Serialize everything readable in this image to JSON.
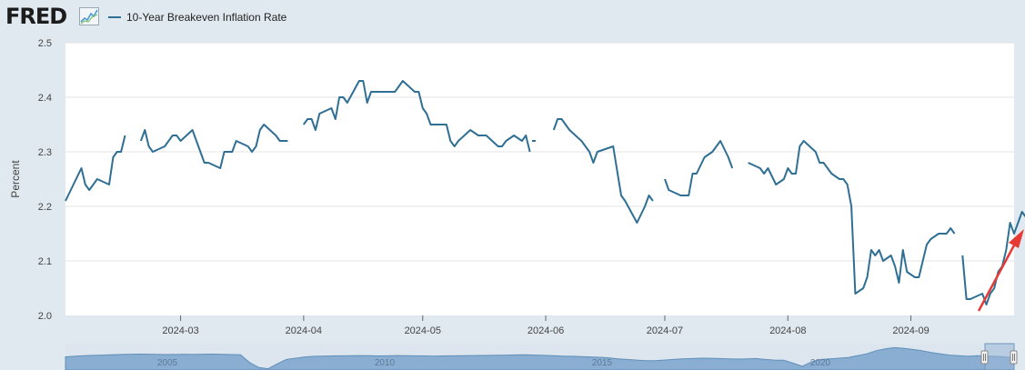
{
  "header": {
    "logo_text": "FRED",
    "logo_icon": "line-chart-icon"
  },
  "colors": {
    "series": "#2f6f94",
    "plot_bg": "#ffffff",
    "page_bg": "#e1e9f0",
    "navigator_fill": "#8aaed1",
    "arrow": "#e83a35"
  },
  "chart_data": {
    "type": "line",
    "ylabel": "Percent",
    "ylim": [
      2.0,
      2.5
    ],
    "yticks": [
      "2.0",
      "2.1",
      "2.2",
      "2.3",
      "2.4",
      "2.5"
    ],
    "xlim": [
      "2024-02-01",
      "2024-09-27"
    ],
    "xticks": [
      {
        "date": "2024-03-01",
        "label": "2024-03"
      },
      {
        "date": "2024-04-01",
        "label": "2024-04"
      },
      {
        "date": "2024-05-01",
        "label": "2024-05"
      },
      {
        "date": "2024-06-01",
        "label": "2024-06"
      },
      {
        "date": "2024-07-01",
        "label": "2024-07"
      },
      {
        "date": "2024-08-01",
        "label": "2024-08"
      },
      {
        "date": "2024-09-01",
        "label": "2024-09"
      }
    ],
    "grid": true,
    "series": [
      {
        "name": "10-Year Breakeven Inflation Rate",
        "segments": [
          [
            [
              "2024-02-01",
              2.21
            ],
            [
              "2024-02-05",
              2.27
            ],
            [
              "2024-02-06",
              2.24
            ],
            [
              "2024-02-07",
              2.23
            ],
            [
              "2024-02-09",
              2.25
            ],
            [
              "2024-02-12",
              2.24
            ],
            [
              "2024-02-13",
              2.29
            ],
            [
              "2024-02-14",
              2.3
            ],
            [
              "2024-02-15",
              2.3
            ],
            [
              "2024-02-16",
              2.33
            ]
          ],
          [
            [
              "2024-02-20",
              2.32
            ],
            [
              "2024-02-21",
              2.34
            ],
            [
              "2024-02-22",
              2.31
            ],
            [
              "2024-02-23",
              2.3
            ],
            [
              "2024-02-26",
              2.31
            ],
            [
              "2024-02-28",
              2.33
            ],
            [
              "2024-02-29",
              2.33
            ],
            [
              "2024-03-01",
              2.32
            ],
            [
              "2024-03-04",
              2.34
            ],
            [
              "2024-03-07",
              2.28
            ],
            [
              "2024-03-08",
              2.28
            ],
            [
              "2024-03-11",
              2.27
            ],
            [
              "2024-03-12",
              2.3
            ],
            [
              "2024-03-14",
              2.3
            ],
            [
              "2024-03-15",
              2.32
            ],
            [
              "2024-03-18",
              2.31
            ],
            [
              "2024-03-19",
              2.3
            ],
            [
              "2024-03-20",
              2.31
            ],
            [
              "2024-03-21",
              2.34
            ],
            [
              "2024-03-22",
              2.35
            ],
            [
              "2024-03-25",
              2.33
            ],
            [
              "2024-03-26",
              2.32
            ],
            [
              "2024-03-28",
              2.32
            ]
          ],
          [
            [
              "2024-04-01",
              2.35
            ],
            [
              "2024-04-02",
              2.36
            ],
            [
              "2024-04-03",
              2.36
            ],
            [
              "2024-04-04",
              2.34
            ],
            [
              "2024-04-05",
              2.37
            ],
            [
              "2024-04-08",
              2.38
            ],
            [
              "2024-04-09",
              2.36
            ],
            [
              "2024-04-10",
              2.4
            ],
            [
              "2024-04-11",
              2.4
            ],
            [
              "2024-04-12",
              2.39
            ],
            [
              "2024-04-15",
              2.43
            ],
            [
              "2024-04-16",
              2.43
            ],
            [
              "2024-04-17",
              2.39
            ],
            [
              "2024-04-18",
              2.41
            ],
            [
              "2024-04-19",
              2.41
            ],
            [
              "2024-04-23",
              2.41
            ],
            [
              "2024-04-24",
              2.41
            ],
            [
              "2024-04-26",
              2.43
            ],
            [
              "2024-04-29",
              2.41
            ],
            [
              "2024-04-30",
              2.41
            ],
            [
              "2024-05-01",
              2.38
            ],
            [
              "2024-05-02",
              2.37
            ],
            [
              "2024-05-03",
              2.35
            ],
            [
              "2024-05-07",
              2.35
            ],
            [
              "2024-05-08",
              2.32
            ],
            [
              "2024-05-09",
              2.31
            ],
            [
              "2024-05-10",
              2.32
            ],
            [
              "2024-05-13",
              2.34
            ],
            [
              "2024-05-15",
              2.33
            ],
            [
              "2024-05-17",
              2.33
            ],
            [
              "2024-05-20",
              2.31
            ],
            [
              "2024-05-21",
              2.31
            ],
            [
              "2024-05-22",
              2.32
            ],
            [
              "2024-05-24",
              2.33
            ],
            [
              "2024-05-26",
              2.32
            ],
            [
              "2024-05-27",
              2.33
            ],
            [
              "2024-05-28",
              2.3
            ]
          ],
          [
            [
              "2024-05-29",
              2.32
            ]
          ],
          [
            [
              "2024-06-03",
              2.34
            ],
            [
              "2024-06-04",
              2.36
            ],
            [
              "2024-06-05",
              2.36
            ],
            [
              "2024-06-07",
              2.34
            ],
            [
              "2024-06-10",
              2.32
            ],
            [
              "2024-06-11",
              2.31
            ],
            [
              "2024-06-12",
              2.3
            ],
            [
              "2024-06-13",
              2.28
            ],
            [
              "2024-06-14",
              2.3
            ],
            [
              "2024-06-18",
              2.31
            ],
            [
              "2024-06-20",
              2.22
            ],
            [
              "2024-06-21",
              2.21
            ],
            [
              "2024-06-24",
              2.17
            ],
            [
              "2024-06-26",
              2.2
            ],
            [
              "2024-06-27",
              2.22
            ],
            [
              "2024-06-28",
              2.21
            ]
          ],
          [
            [
              "2024-07-01",
              2.25
            ],
            [
              "2024-07-02",
              2.23
            ],
            [
              "2024-07-05",
              2.22
            ],
            [
              "2024-07-07",
              2.22
            ],
            [
              "2024-07-08",
              2.26
            ],
            [
              "2024-07-09",
              2.26
            ],
            [
              "2024-07-11",
              2.29
            ],
            [
              "2024-07-13",
              2.3
            ],
            [
              "2024-07-15",
              2.32
            ],
            [
              "2024-07-17",
              2.29
            ],
            [
              "2024-07-18",
              2.27
            ]
          ],
          [
            [
              "2024-07-22",
              2.28
            ],
            [
              "2024-07-25",
              2.27
            ],
            [
              "2024-07-26",
              2.26
            ],
            [
              "2024-07-27",
              2.27
            ],
            [
              "2024-07-29",
              2.24
            ],
            [
              "2024-07-31",
              2.25
            ],
            [
              "2024-08-01",
              2.27
            ],
            [
              "2024-08-02",
              2.26
            ],
            [
              "2024-08-03",
              2.26
            ],
            [
              "2024-08-04",
              2.31
            ],
            [
              "2024-08-05",
              2.32
            ],
            [
              "2024-08-08",
              2.3
            ],
            [
              "2024-08-09",
              2.28
            ],
            [
              "2024-08-10",
              2.28
            ],
            [
              "2024-08-12",
              2.26
            ],
            [
              "2024-08-14",
              2.25
            ],
            [
              "2024-08-15",
              2.25
            ],
            [
              "2024-08-16",
              2.24
            ],
            [
              "2024-08-17",
              2.2
            ],
            [
              "2024-08-18",
              2.04
            ],
            [
              "2024-08-20",
              2.05
            ],
            [
              "2024-08-21",
              2.07
            ],
            [
              "2024-08-22",
              2.12
            ],
            [
              "2024-08-23",
              2.11
            ],
            [
              "2024-08-24",
              2.12
            ],
            [
              "2024-08-25",
              2.1
            ],
            [
              "2024-08-27",
              2.11
            ],
            [
              "2024-08-28",
              2.09
            ],
            [
              "2024-08-29",
              2.06
            ],
            [
              "2024-08-30",
              2.12
            ],
            [
              "2024-08-31",
              2.08
            ],
            [
              "2024-09-02",
              2.07
            ],
            [
              "2024-09-03",
              2.07
            ],
            [
              "2024-09-05",
              2.13
            ],
            [
              "2024-09-06",
              2.14
            ],
            [
              "2024-09-08",
              2.15
            ],
            [
              "2024-09-09",
              2.15
            ],
            [
              "2024-09-10",
              2.15
            ],
            [
              "2024-09-11",
              2.16
            ],
            [
              "2024-09-12",
              2.15
            ]
          ],
          [
            [
              "2024-09-14",
              2.11
            ],
            [
              "2024-09-15",
              2.03
            ],
            [
              "2024-09-16",
              2.03
            ],
            [
              "2024-09-19",
              2.04
            ],
            [
              "2024-09-20",
              2.02
            ],
            [
              "2024-09-21",
              2.04
            ],
            [
              "2024-09-22",
              2.05
            ],
            [
              "2024-09-23",
              2.08
            ],
            [
              "2024-09-24",
              2.09
            ],
            [
              "2024-09-25",
              2.12
            ],
            [
              "2024-09-26",
              2.17
            ],
            [
              "2024-09-27",
              2.15
            ],
            [
              "2024-09-28",
              2.17
            ],
            [
              "2024-09-29",
              2.19
            ],
            [
              "2024-09-30",
              2.18
            ]
          ]
        ]
      }
    ],
    "navigator": {
      "ticks": [
        "2005",
        "2010",
        "2015",
        "2020"
      ],
      "profile": [
        2.25,
        2.3,
        2.35,
        2.38,
        2.4,
        2.42,
        2.45,
        2.46,
        2.48,
        2.47,
        2.45,
        2.44,
        2.45,
        2.46,
        2.45,
        2.47,
        2.48,
        2.46,
        2.44,
        2.42,
        1.8,
        1.4,
        1.3,
        1.7,
        2.05,
        2.15,
        2.25,
        2.3,
        2.32,
        2.33,
        2.34,
        2.35,
        2.36,
        2.35,
        2.33,
        2.34,
        2.36,
        2.35,
        2.34,
        2.33,
        2.32,
        2.33,
        2.34,
        2.35,
        2.36,
        2.37,
        2.38,
        2.39,
        2.4,
        2.41,
        2.42,
        2.4,
        2.38,
        2.35,
        2.32,
        2.3,
        2.28,
        2.25,
        2.22,
        2.18,
        2.1,
        2.05,
        2.0,
        1.95,
        1.95,
        2.0,
        2.05,
        2.1,
        2.12,
        2.15,
        2.14,
        2.12,
        2.1,
        2.08,
        2.1,
        2.12,
        2.05,
        2.0,
        1.98,
        1.75,
        1.5,
        1.85,
        2.05,
        2.1,
        2.15,
        2.2,
        2.35,
        2.5,
        2.75,
        2.9,
        3.0,
        2.95,
        2.85,
        2.75,
        2.6,
        2.5,
        2.4,
        2.35,
        2.3,
        2.35,
        2.3,
        2.3,
        2.25,
        2.2
      ]
    }
  }
}
